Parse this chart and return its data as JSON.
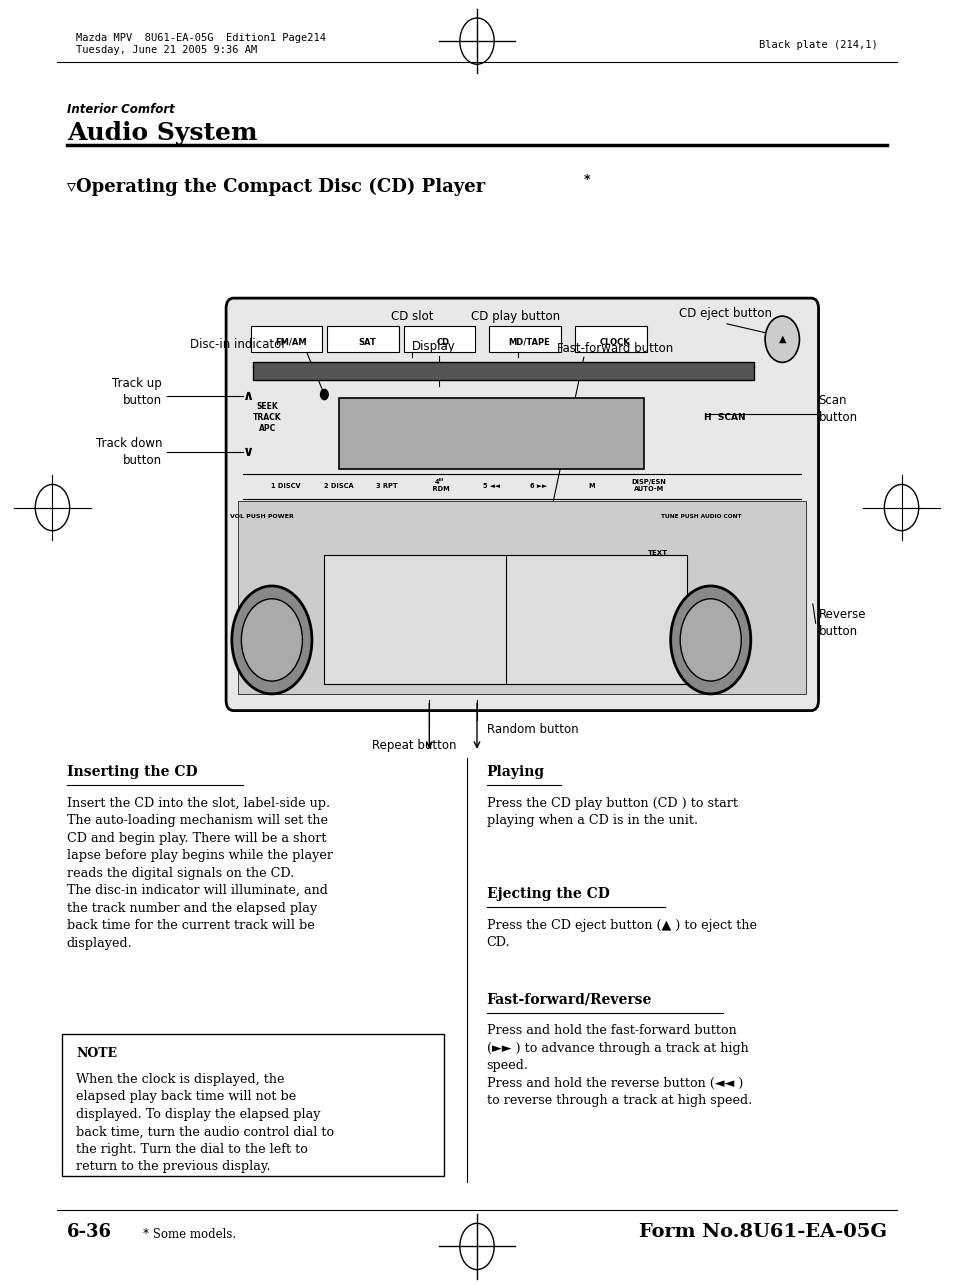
{
  "bg_color": "#ffffff",
  "header_left_line1": "Mazda MPV  8U61-EA-05G  Edition1 Page214",
  "header_left_line2": "Tuesday, June 21 2005 9:36 AM",
  "header_right": "Black plate (214,1)",
  "section_label": "Interior Comfort",
  "section_title": "Audio System",
  "subsection_title": "▿Operating the Compact Disc (CD) Player",
  "subsection_asterisk": "*",
  "inserting_title": "Inserting the CD",
  "inserting_body": "Insert the CD into the slot, label-side up.\nThe auto-loading mechanism will set the\nCD and begin play. There will be a short\nlapse before play begins while the player\nreads the digital signals on the CD.\nThe disc-in indicator will illuminate, and\nthe track number and the elapsed play\nback time for the current track will be\ndisplayed.",
  "note_title": "NOTE",
  "note_body": "When the clock is displayed, the\nelapsed play back time will not be\ndisplayed. To display the elapsed play\nback time, turn the audio control dial to\nthe right. Turn the dial to the left to\nreturn to the previous display.",
  "playing_title": "Playing",
  "playing_body": "Press the CD play button (CD ) to start\nplaying when a CD is in the unit.",
  "ejecting_title": "Ejecting the CD",
  "ejecting_body": "Press the CD eject button (▲ ) to eject the\nCD.",
  "ff_title": "Fast-forward/Reverse",
  "ff_body": "Press and hold the fast-forward button\n(►► ) to advance through a track at high\nspeed.\nPress and hold the reverse button (◄◄ )\nto reverse through a track at high speed.",
  "footer_left": "6-36",
  "footer_asterisk": "* Some models.",
  "footer_right": "Form No.8U61-EA-05G"
}
